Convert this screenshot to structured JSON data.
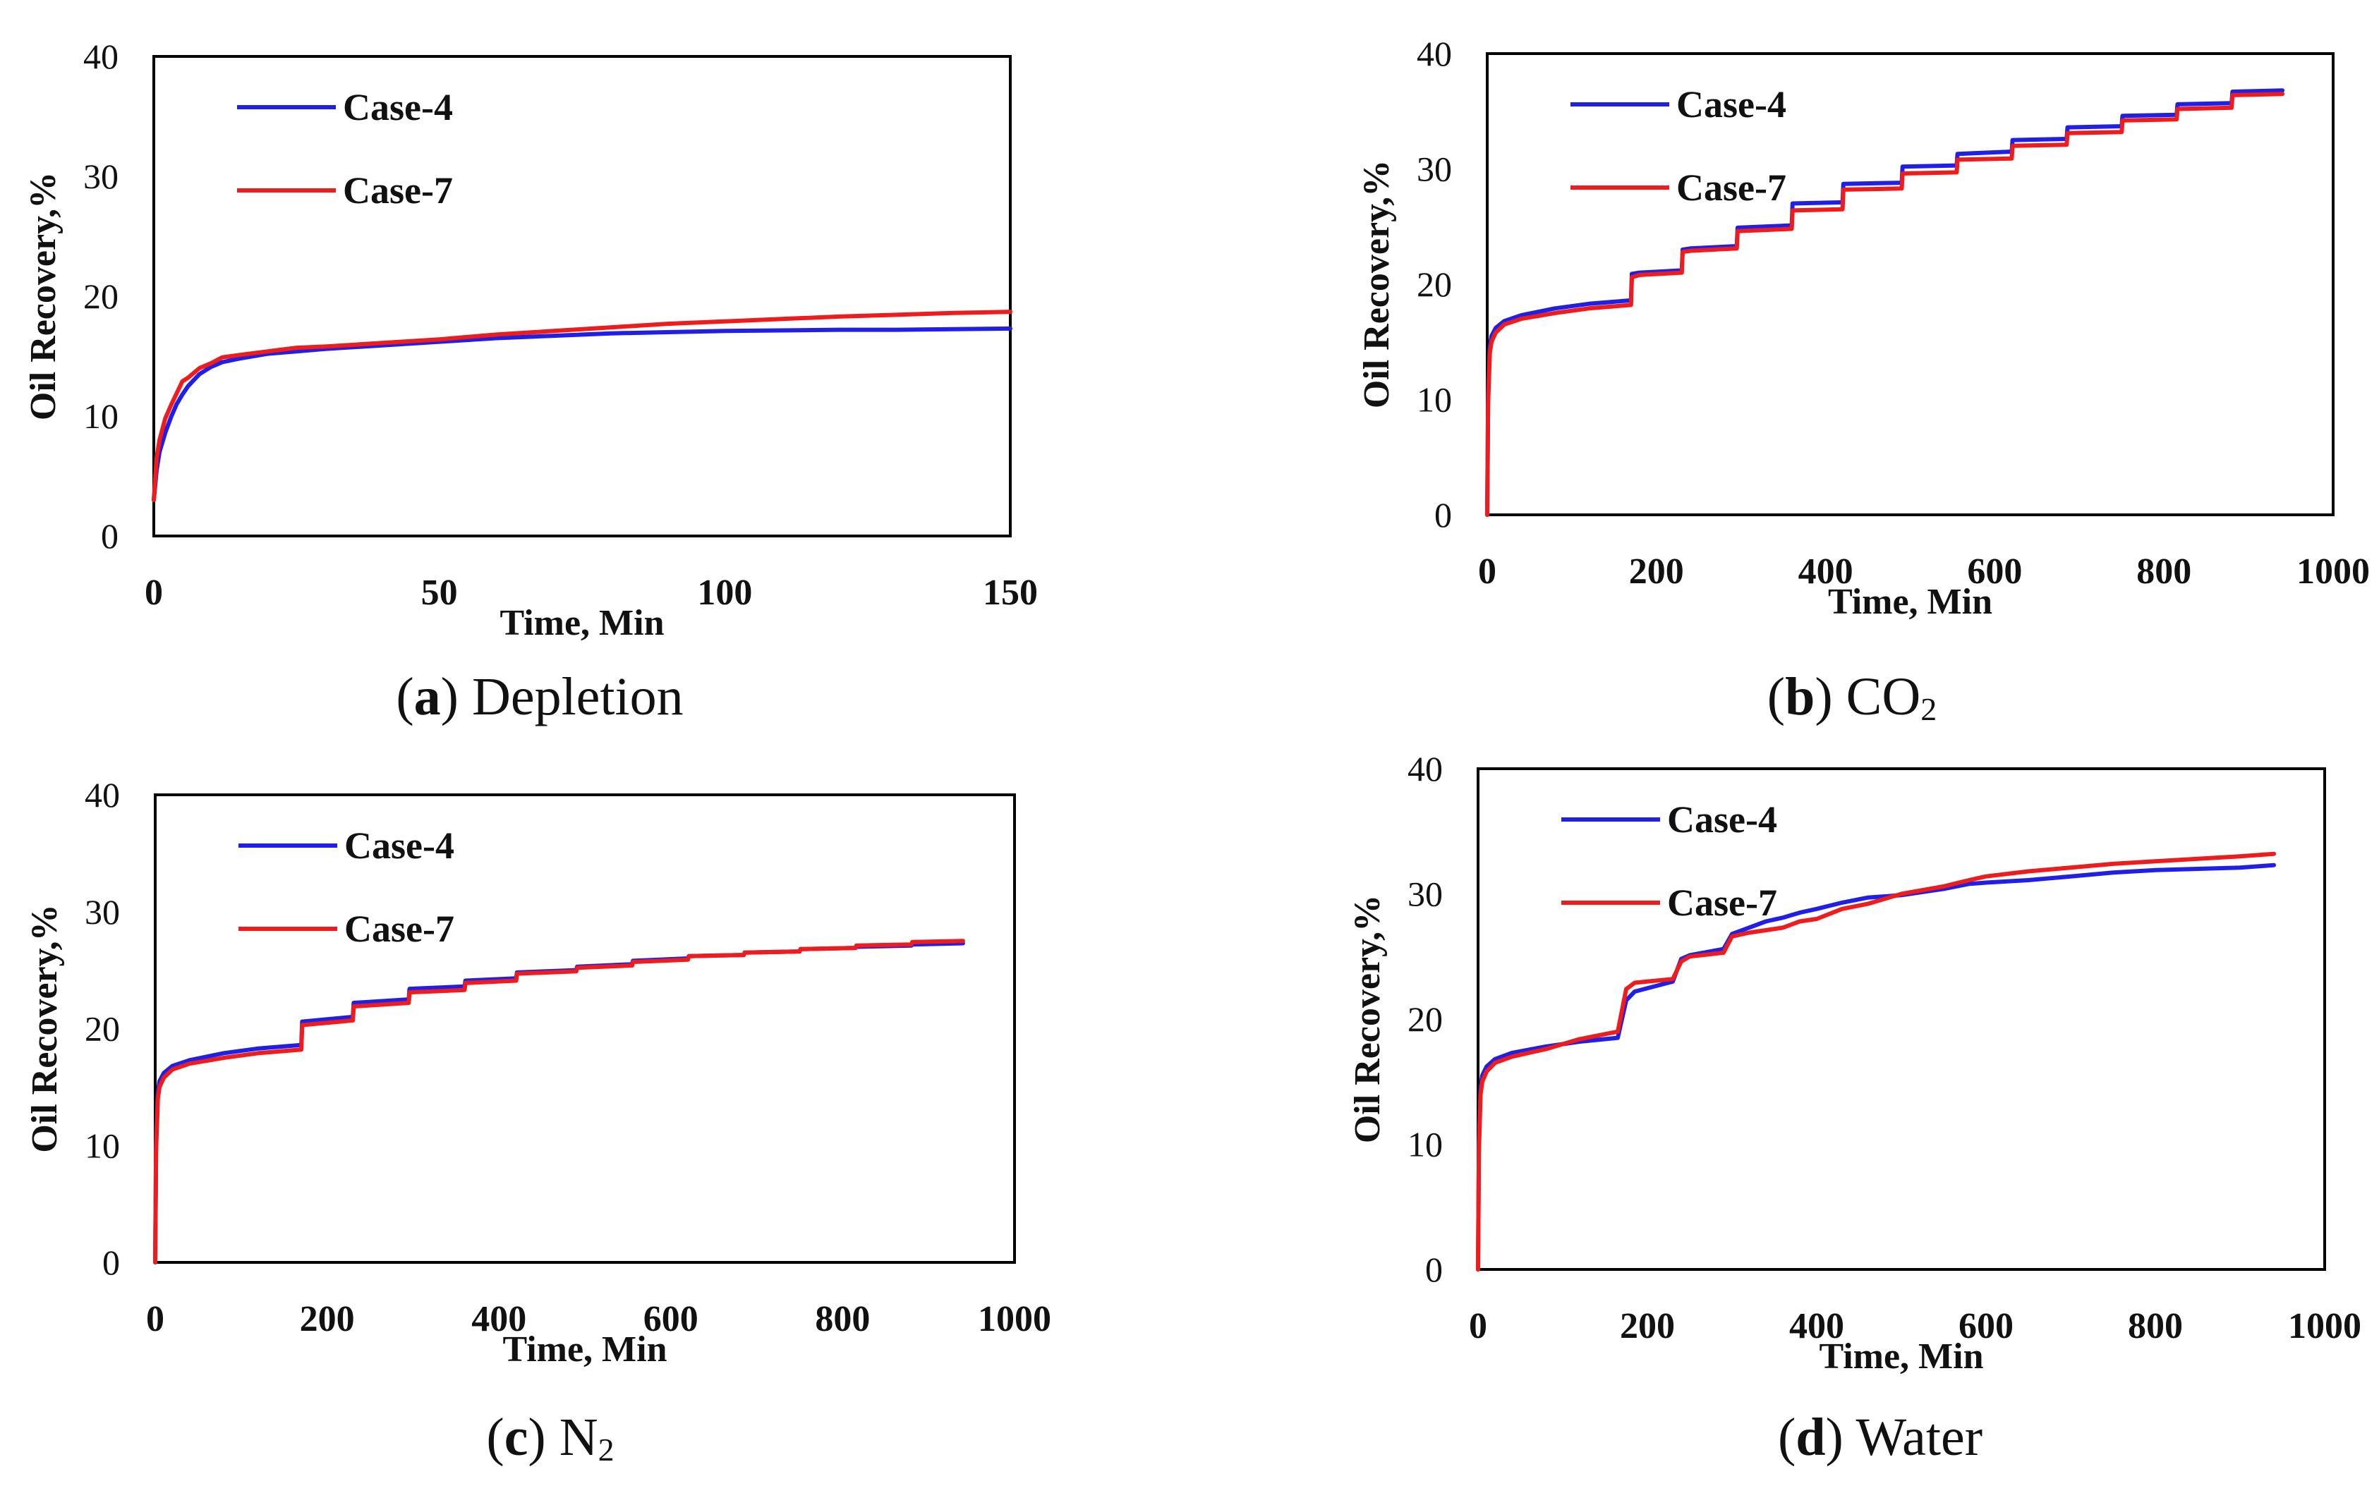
{
  "figure": {
    "panels": [
      {
        "letter": "a",
        "caption": "Depletion",
        "subscript": ""
      },
      {
        "letter": "b",
        "caption": "CO",
        "subscript": "2"
      },
      {
        "letter": "c",
        "caption": "N",
        "subscript": "2"
      },
      {
        "letter": "d",
        "caption": "Water",
        "subscript": ""
      }
    ]
  },
  "colors": {
    "case4": "#1f1fe8",
    "case7": "#ee1c1c"
  },
  "chart_data": [
    {
      "type": "line",
      "title": "(a) Depletion",
      "xlabel": "Time, Min",
      "ylabel": "Oil Recovery,%",
      "xlim": [
        0,
        150
      ],
      "ylim": [
        0,
        40
      ],
      "xticks": [
        0,
        50,
        100,
        150
      ],
      "yticks": [
        0,
        10,
        20,
        30,
        40
      ],
      "grid": false,
      "legend": "top-left",
      "series": [
        {
          "name": "Case-4",
          "x": [
            0,
            0.5,
            1,
            2,
            3,
            4,
            5,
            6,
            8,
            10,
            12,
            15,
            20,
            25,
            30,
            40,
            50,
            60,
            70,
            80,
            90,
            100,
            110,
            120,
            130,
            140,
            150
          ],
          "y": [
            3,
            5.5,
            7,
            8.6,
            9.9,
            11,
            11.8,
            12.5,
            13.5,
            14.1,
            14.5,
            14.8,
            15.2,
            15.4,
            15.6,
            15.9,
            16.2,
            16.5,
            16.7,
            16.9,
            17.0,
            17.1,
            17.15,
            17.2,
            17.2,
            17.25,
            17.3
          ]
        },
        {
          "name": "Case-7",
          "x": [
            0,
            0.5,
            1,
            2,
            3,
            4,
            5,
            6,
            8,
            10,
            12,
            15,
            20,
            25,
            30,
            40,
            50,
            60,
            70,
            80,
            90,
            100,
            110,
            120,
            130,
            140,
            150
          ],
          "y": [
            3,
            6.5,
            8,
            9.8,
            10.9,
            11.9,
            12.9,
            13.2,
            14.0,
            14.4,
            14.9,
            15.1,
            15.4,
            15.7,
            15.8,
            16.1,
            16.4,
            16.8,
            17.1,
            17.4,
            17.7,
            17.9,
            18.1,
            18.3,
            18.45,
            18.6,
            18.7
          ]
        }
      ]
    },
    {
      "type": "line",
      "title": "(b) CO2",
      "xlabel": "Time, Min",
      "ylabel": "Oil Recovery,%",
      "xlim": [
        0,
        1000
      ],
      "ylim": [
        0,
        40
      ],
      "xticks": [
        0,
        200,
        400,
        600,
        800,
        1000
      ],
      "yticks": [
        0,
        10,
        20,
        30,
        40
      ],
      "grid": false,
      "legend": "top-left",
      "series": [
        {
          "name": "Case-4",
          "x": [
            0,
            1,
            3,
            5,
            10,
            20,
            40,
            80,
            120,
            170,
            171,
            180,
            230,
            231,
            240,
            295,
            296,
            360,
            361,
            420,
            421,
            490,
            491,
            555,
            556,
            620,
            621,
            685,
            686,
            750,
            751,
            815,
            816,
            880,
            881,
            940
          ],
          "y": [
            0,
            10,
            14.5,
            15.5,
            16.2,
            16.8,
            17.3,
            17.9,
            18.3,
            18.6,
            20.9,
            21.0,
            21.2,
            23.0,
            23.1,
            23.3,
            24.9,
            25.1,
            27.0,
            27.1,
            28.7,
            28.8,
            30.2,
            30.3,
            31.3,
            31.5,
            32.5,
            32.6,
            33.6,
            33.7,
            34.6,
            34.7,
            35.6,
            35.7,
            36.7,
            36.8
          ]
        },
        {
          "name": "Case-7",
          "x": [
            0,
            1,
            3,
            5,
            10,
            20,
            40,
            80,
            120,
            170,
            171,
            180,
            230,
            231,
            240,
            295,
            296,
            360,
            361,
            420,
            421,
            490,
            491,
            555,
            556,
            620,
            621,
            685,
            686,
            750,
            751,
            815,
            816,
            880,
            881,
            940
          ],
          "y": [
            0,
            9.5,
            14.0,
            15.0,
            15.8,
            16.5,
            17.0,
            17.5,
            17.9,
            18.2,
            20.6,
            20.8,
            21.0,
            22.8,
            22.9,
            23.1,
            24.6,
            24.8,
            26.4,
            26.5,
            28.2,
            28.3,
            29.6,
            29.7,
            30.8,
            30.9,
            32.0,
            32.1,
            33.1,
            33.2,
            34.2,
            34.3,
            35.2,
            35.3,
            36.4,
            36.5
          ]
        }
      ]
    },
    {
      "type": "line",
      "title": "(c) N2",
      "xlabel": "Time, Min",
      "ylabel": "Oil Recovery,%",
      "xlim": [
        0,
        1000
      ],
      "ylim": [
        0,
        40
      ],
      "xticks": [
        0,
        200,
        400,
        600,
        800,
        1000
      ],
      "yticks": [
        0,
        10,
        20,
        30,
        40
      ],
      "grid": false,
      "legend": "top-left",
      "series": [
        {
          "name": "Case-4",
          "x": [
            0,
            1,
            3,
            5,
            10,
            20,
            40,
            80,
            120,
            170,
            171,
            230,
            231,
            295,
            296,
            360,
            361,
            420,
            421,
            490,
            491,
            555,
            556,
            620,
            621,
            685,
            686,
            750,
            751,
            815,
            816,
            880,
            881,
            940
          ],
          "y": [
            0,
            10,
            14.5,
            15.5,
            16.2,
            16.8,
            17.3,
            17.9,
            18.3,
            18.6,
            20.6,
            21.0,
            22.2,
            22.5,
            23.4,
            23.6,
            24.1,
            24.3,
            24.8,
            25.0,
            25.3,
            25.5,
            25.8,
            26.0,
            26.2,
            26.3,
            26.5,
            26.6,
            26.8,
            26.9,
            27.0,
            27.1,
            27.2,
            27.3
          ]
        },
        {
          "name": "Case-7",
          "x": [
            0,
            1,
            3,
            5,
            10,
            20,
            40,
            80,
            120,
            170,
            171,
            230,
            231,
            295,
            296,
            360,
            361,
            420,
            421,
            490,
            491,
            555,
            556,
            620,
            621,
            685,
            686,
            750,
            751,
            815,
            816,
            880,
            881,
            940
          ],
          "y": [
            0,
            9.5,
            14.0,
            15.0,
            15.8,
            16.5,
            17.0,
            17.5,
            17.9,
            18.2,
            20.3,
            20.7,
            21.9,
            22.2,
            23.1,
            23.3,
            23.9,
            24.1,
            24.7,
            24.9,
            25.2,
            25.4,
            25.7,
            25.9,
            26.2,
            26.3,
            26.5,
            26.6,
            26.8,
            26.9,
            27.1,
            27.2,
            27.4,
            27.5
          ]
        }
      ]
    },
    {
      "type": "line",
      "title": "(d) Water",
      "xlabel": "Time, Min",
      "ylabel": "Oil Recovery,%",
      "xlim": [
        0,
        1000
      ],
      "ylim": [
        0,
        40
      ],
      "xticks": [
        0,
        200,
        400,
        600,
        800,
        1000
      ],
      "yticks": [
        0,
        10,
        20,
        30,
        40
      ],
      "grid": false,
      "legend": "top-left",
      "series": [
        {
          "name": "Case-4",
          "x": [
            0,
            1,
            3,
            5,
            10,
            20,
            40,
            80,
            120,
            165,
            175,
            185,
            230,
            240,
            250,
            290,
            300,
            320,
            340,
            360,
            380,
            400,
            430,
            460,
            500,
            550,
            580,
            600,
            650,
            700,
            750,
            800,
            850,
            900,
            940
          ],
          "y": [
            0,
            10,
            14.5,
            15.5,
            16.2,
            16.8,
            17.3,
            17.8,
            18.2,
            18.5,
            21.5,
            22.2,
            23.0,
            24.8,
            25.1,
            25.6,
            26.8,
            27.3,
            27.8,
            28.1,
            28.5,
            28.8,
            29.3,
            29.7,
            29.9,
            30.4,
            30.8,
            30.9,
            31.1,
            31.4,
            31.7,
            31.9,
            32.0,
            32.1,
            32.3
          ]
        },
        {
          "name": "Case-7",
          "x": [
            0,
            1,
            3,
            5,
            10,
            20,
            40,
            80,
            120,
            165,
            175,
            185,
            230,
            240,
            250,
            290,
            300,
            320,
            340,
            360,
            380,
            400,
            430,
            460,
            500,
            550,
            580,
            600,
            650,
            700,
            750,
            800,
            850,
            900,
            940
          ],
          "y": [
            0,
            9.5,
            14.0,
            15.0,
            15.8,
            16.5,
            17.0,
            17.6,
            18.4,
            19.0,
            22.4,
            22.9,
            23.2,
            24.6,
            25.0,
            25.3,
            26.6,
            26.9,
            27.1,
            27.3,
            27.8,
            28.0,
            28.8,
            29.2,
            30.0,
            30.6,
            31.1,
            31.4,
            31.8,
            32.1,
            32.4,
            32.6,
            32.8,
            33.0,
            33.2
          ]
        }
      ]
    }
  ]
}
